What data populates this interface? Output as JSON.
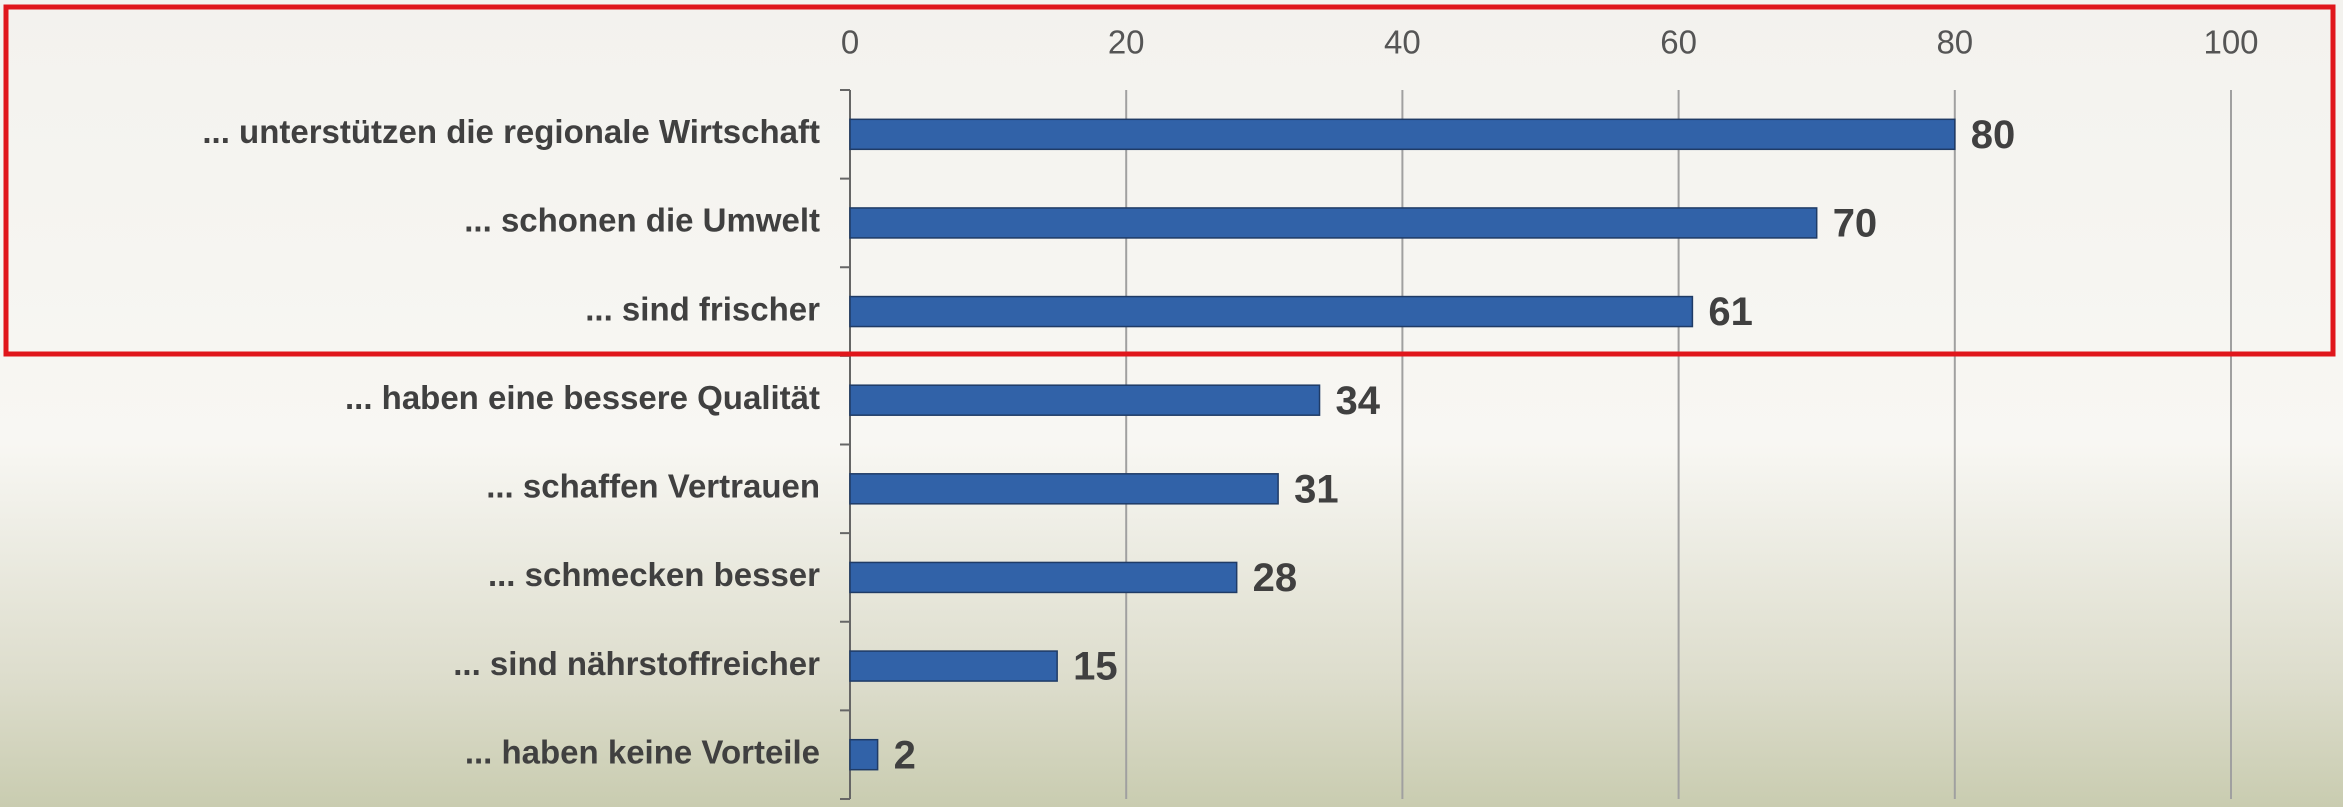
{
  "chart_data": {
    "type": "bar",
    "orientation": "horizontal",
    "categories": [
      "... unterstützen die regionale Wirtschaft",
      "... schonen die Umwelt",
      "... sind frischer",
      "... haben eine bessere Qualität",
      "... schaffen Vertrauen",
      "... schmecken besser",
      "... sind nährstoffreicher",
      "... haben keine Vorteile"
    ],
    "values": [
      80,
      70,
      61,
      34,
      31,
      28,
      15,
      2
    ],
    "color": "#3162a8",
    "xlim": [
      0,
      100
    ],
    "xticks": [
      0,
      20,
      40,
      60,
      80,
      100
    ],
    "grid": true
  }
}
